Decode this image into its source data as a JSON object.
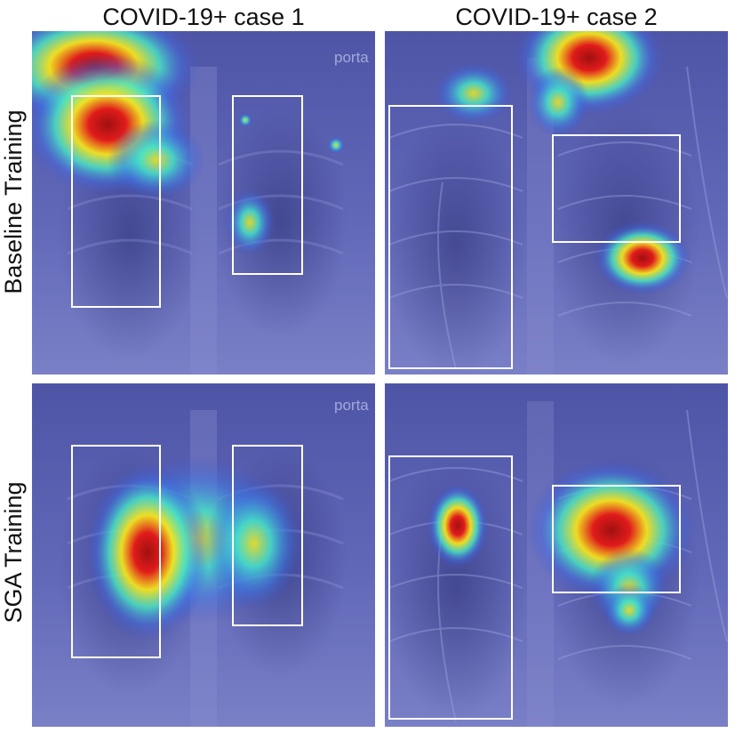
{
  "columns": [
    "COVID-19+ case 1",
    "COVID-19+ case 2"
  ],
  "rows": [
    "Baseline Training",
    "SGA Training"
  ],
  "panels": [
    {
      "id": "baseline-case1",
      "overlay_text": "porta",
      "highlight_boxes": 2
    },
    {
      "id": "baseline-case2",
      "overlay_text": "",
      "highlight_boxes": 2
    },
    {
      "id": "sga-case1",
      "overlay_text": "porta",
      "highlight_boxes": 2
    },
    {
      "id": "sga-case2",
      "overlay_text": "",
      "highlight_boxes": 2
    }
  ],
  "colors": {
    "xray_tint": "#5a5fb0",
    "heat_low": "#2fd7e6",
    "heat_mid": "#f2e81e",
    "heat_high": "#d2141b",
    "box_stroke": "#ffffff"
  }
}
